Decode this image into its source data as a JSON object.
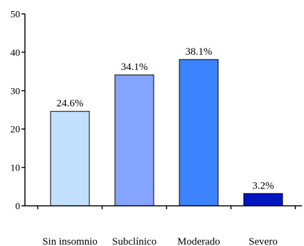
{
  "chart_data": {
    "type": "bar",
    "title": "",
    "xlabel": "",
    "ylabel": "",
    "categories": [
      "Sin insomnio",
      "Subclínico",
      "Moderado",
      "Severo"
    ],
    "values": [
      24.6,
      34.1,
      38.1,
      3.2
    ],
    "data_labels": [
      "24.6%",
      "34.1%",
      "38.1%",
      "3.2%"
    ],
    "bar_colors": [
      "#c2dffd",
      "#84a4fe",
      "#3c83fd",
      "#0016c0"
    ],
    "ylim": [
      0,
      50
    ],
    "yticks": [
      0,
      10,
      20,
      30,
      40,
      50
    ],
    "ytick_labels": [
      "0",
      "10",
      "20",
      "30",
      "40",
      "50"
    ],
    "grid": false,
    "legend": "none"
  }
}
